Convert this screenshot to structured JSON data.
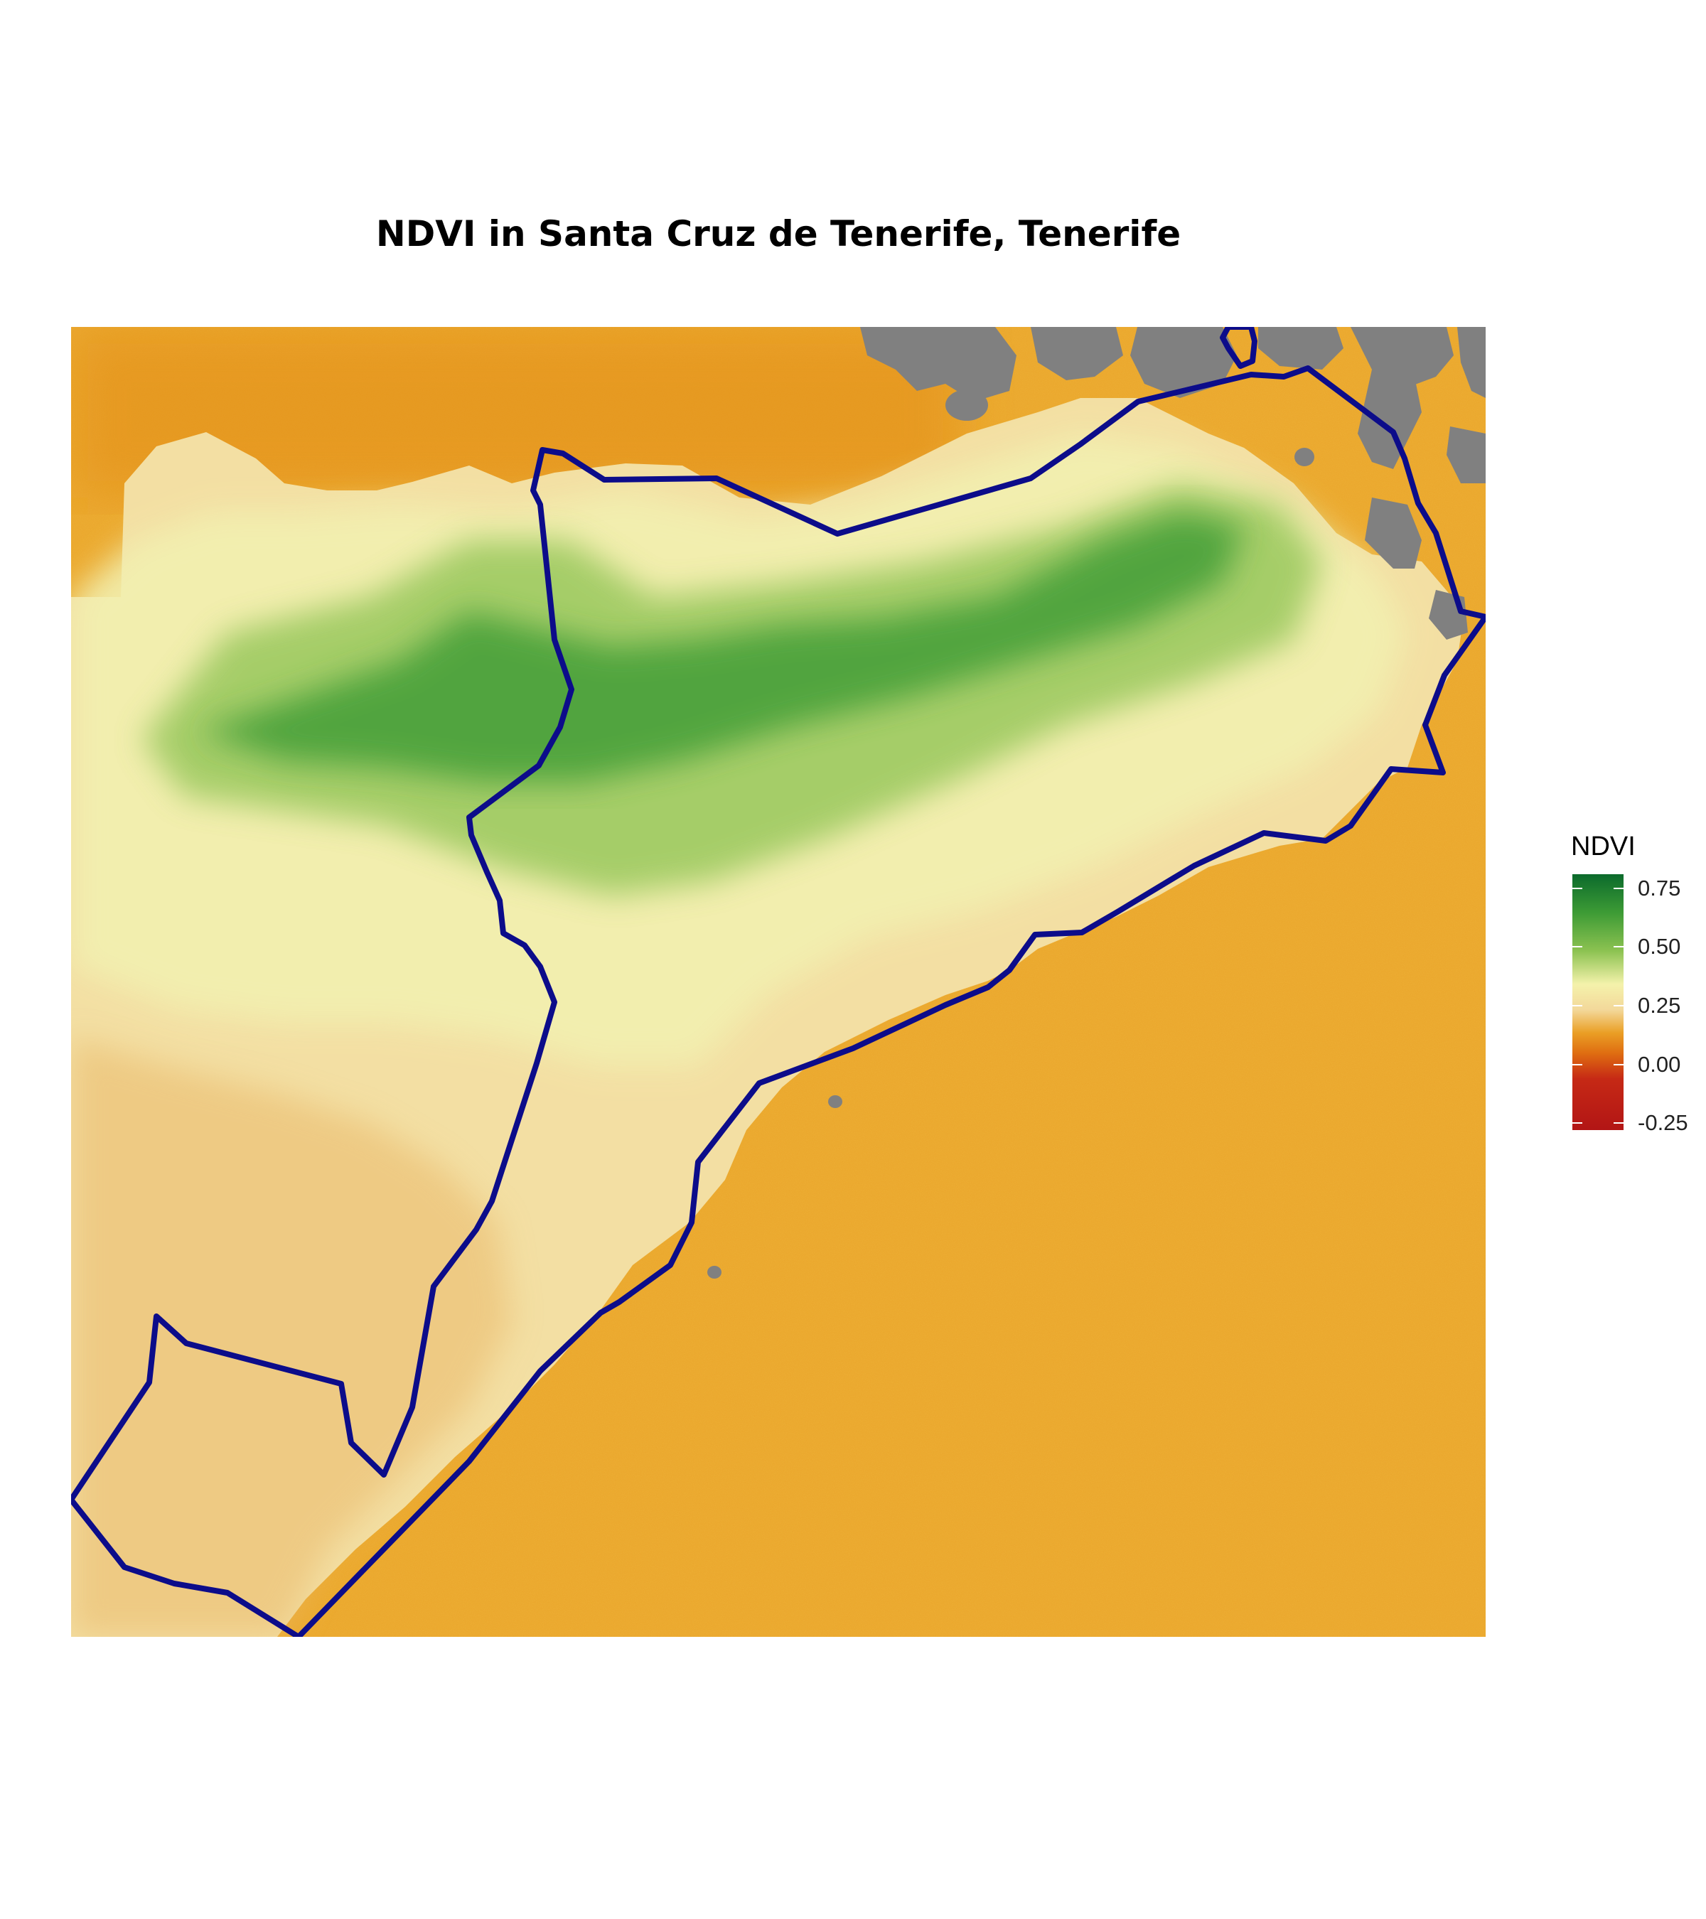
{
  "title": "NDVI in Santa Cruz de Tenerife, Tenerife",
  "legend": {
    "title": "NDVI",
    "ticks": [
      {
        "value": 0.75,
        "label": "0.75"
      },
      {
        "value": 0.5,
        "label": "0.50"
      },
      {
        "value": 0.25,
        "label": "0.25"
      },
      {
        "value": 0.0,
        "label": "0.00"
      },
      {
        "value": -0.25,
        "label": "-0.25"
      }
    ],
    "range": [
      -0.28,
      0.81
    ]
  },
  "colors": {
    "sea": "#eaa52a",
    "coastal_water": "#e38d13",
    "land_bare": "#f3dfa3",
    "land_low": "#f2f0b0",
    "vegetation": "#8cc251",
    "dense_vegetation": "#3d9b35",
    "urban": "#eab96a",
    "cloud_mask": "#808080",
    "boundary": "#0c0c8a"
  }
}
